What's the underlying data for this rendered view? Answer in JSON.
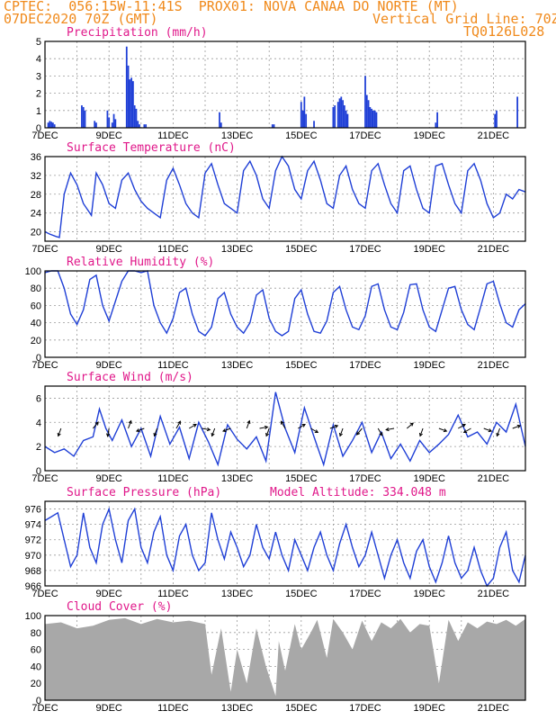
{
  "header": {
    "line1": "CPTEC:  056:15W-11:41S  PROX01: NOVA CANAA DO NORTE (MT)",
    "line2_left": "07DEC2020 70Z (GMT)",
    "line2_right": "Vertical Grid Line: 70Z",
    "line3_right": "TQ0126L028"
  },
  "colors": {
    "header": "#f08a1c",
    "panel_title": "#e0188a",
    "series": "#1f3fd6",
    "cloud": "#a8a8a8"
  },
  "x_ticks": [
    "7DEC",
    "9DEC",
    "11DEC",
    "13DEC",
    "15DEC",
    "17DEC",
    "19DEC",
    "21DEC"
  ],
  "chart_data": [
    {
      "id": "precip",
      "type": "bar",
      "title": "Precipitation (mm/h)",
      "xlim": [
        0,
        15
      ],
      "ylim": [
        0,
        5
      ],
      "yticks": [
        0,
        1,
        2,
        3,
        4,
        5
      ],
      "x": [
        0.1,
        0.15,
        0.2,
        0.25,
        0.3,
        1.15,
        1.2,
        1.25,
        1.55,
        1.6,
        1.95,
        2.0,
        2.1,
        2.15,
        2.2,
        2.55,
        2.6,
        2.65,
        2.7,
        2.75,
        2.8,
        2.85,
        2.9,
        2.95,
        3.1,
        3.15,
        5.45,
        5.5,
        7.1,
        7.15,
        8.0,
        8.05,
        8.1,
        8.15,
        8.4,
        9.0,
        9.05,
        9.15,
        9.2,
        9.25,
        9.3,
        9.35,
        9.4,
        9.45,
        10.0,
        10.05,
        10.1,
        10.15,
        10.2,
        10.25,
        10.3,
        10.35,
        12.2,
        12.25,
        14.05,
        14.1,
        14.75
      ],
      "values": [
        0.3,
        0.4,
        0.35,
        0.3,
        0.2,
        1.3,
        1.2,
        1.0,
        0.4,
        0.3,
        1.0,
        0.6,
        0.3,
        0.8,
        0.5,
        4.7,
        3.6,
        2.8,
        2.9,
        2.7,
        1.3,
        1.1,
        0.4,
        0.2,
        0.2,
        0.2,
        0.9,
        0.3,
        0.2,
        0.2,
        1.5,
        1.0,
        1.8,
        0.8,
        0.4,
        1.2,
        1.3,
        1.5,
        1.7,
        1.8,
        1.6,
        1.3,
        1.0,
        0.8,
        3.0,
        1.9,
        1.6,
        1.2,
        1.1,
        1.0,
        1.0,
        0.9,
        0.3,
        0.9,
        0.8,
        1.0,
        1.8
      ]
    },
    {
      "id": "temp",
      "type": "line",
      "title": "Surface Temperature (nC)",
      "xlim": [
        0,
        15
      ],
      "ylim": [
        18,
        36
      ],
      "yticks": [
        20,
        24,
        28,
        32,
        36
      ],
      "x": [
        0,
        0.15,
        0.35,
        0.45,
        0.6,
        0.8,
        1.0,
        1.2,
        1.45,
        1.6,
        1.8,
        2.0,
        2.2,
        2.4,
        2.6,
        2.8,
        3.0,
        3.2,
        3.4,
        3.6,
        3.8,
        4.0,
        4.2,
        4.4,
        4.6,
        4.8,
        5.0,
        5.2,
        5.4,
        5.6,
        5.8,
        6.0,
        6.2,
        6.4,
        6.6,
        6.8,
        7.0,
        7.2,
        7.4,
        7.6,
        7.8,
        8.0,
        8.2,
        8.4,
        8.6,
        8.8,
        9.0,
        9.2,
        9.4,
        9.6,
        9.8,
        10.0,
        10.2,
        10.4,
        10.6,
        10.8,
        11.0,
        11.2,
        11.4,
        11.6,
        11.8,
        12.0,
        12.2,
        12.4,
        12.6,
        12.8,
        13.0,
        13.2,
        13.4,
        13.6,
        13.8,
        14.0,
        14.2,
        14.4,
        14.6,
        14.8,
        15.0
      ],
      "values": [
        20,
        19.5,
        19,
        18.8,
        28,
        32.5,
        30,
        26,
        23.5,
        32.5,
        30,
        26,
        25,
        31,
        32.5,
        29,
        26.5,
        25,
        24,
        23,
        31,
        33.5,
        30,
        26,
        24,
        23,
        32.5,
        34.5,
        30,
        26,
        25,
        24,
        33,
        35,
        32,
        27,
        25,
        33,
        36,
        34,
        29,
        27,
        33,
        35,
        31,
        26,
        25,
        32,
        34,
        29,
        26,
        25,
        33,
        34.5,
        30,
        26,
        24,
        33,
        34,
        29,
        25,
        24,
        34,
        34.5,
        30,
        26,
        24,
        33,
        34.5,
        31,
        26,
        23,
        24,
        28,
        27,
        29,
        28.5
      ]
    },
    {
      "id": "rh",
      "type": "line",
      "title": "Relative Humidity (%)",
      "xlim": [
        0,
        15
      ],
      "ylim": [
        0,
        100
      ],
      "yticks": [
        0,
        20,
        40,
        60,
        80,
        100
      ],
      "x": [
        0,
        0.2,
        0.4,
        0.6,
        0.8,
        1.0,
        1.2,
        1.4,
        1.6,
        1.8,
        2.0,
        2.2,
        2.4,
        2.6,
        2.8,
        3.0,
        3.2,
        3.4,
        3.6,
        3.8,
        4.0,
        4.2,
        4.4,
        4.6,
        4.8,
        5.0,
        5.2,
        5.4,
        5.6,
        5.8,
        6.0,
        6.2,
        6.4,
        6.6,
        6.8,
        7.0,
        7.2,
        7.4,
        7.6,
        7.8,
        8.0,
        8.2,
        8.4,
        8.6,
        8.8,
        9.0,
        9.2,
        9.4,
        9.6,
        9.8,
        10.0,
        10.2,
        10.4,
        10.6,
        10.8,
        11.0,
        11.2,
        11.4,
        11.6,
        11.8,
        12.0,
        12.2,
        12.4,
        12.6,
        12.8,
        13.0,
        13.2,
        13.4,
        13.6,
        13.8,
        14.0,
        14.2,
        14.4,
        14.6,
        14.8,
        15.0
      ],
      "values": [
        98,
        100,
        100,
        80,
        50,
        38,
        55,
        90,
        95,
        60,
        42,
        65,
        88,
        100,
        100,
        98,
        100,
        60,
        40,
        28,
        45,
        75,
        80,
        50,
        30,
        25,
        35,
        68,
        75,
        50,
        35,
        28,
        40,
        72,
        78,
        45,
        30,
        25,
        30,
        68,
        78,
        50,
        30,
        28,
        42,
        75,
        82,
        55,
        35,
        32,
        48,
        82,
        85,
        55,
        35,
        32,
        52,
        84,
        85,
        55,
        35,
        30,
        55,
        80,
        82,
        55,
        38,
        32,
        58,
        85,
        88,
        62,
        40,
        35,
        55,
        62
      ]
    },
    {
      "id": "wind",
      "type": "line",
      "title": "Surface Wind (m/s)",
      "xlim": [
        0,
        15
      ],
      "ylim": [
        0,
        7
      ],
      "yticks": [
        0,
        2,
        4,
        6
      ],
      "x": [
        0,
        0.3,
        0.6,
        0.9,
        1.2,
        1.5,
        1.7,
        1.9,
        2.1,
        2.4,
        2.7,
        3.0,
        3.3,
        3.6,
        3.9,
        4.2,
        4.5,
        4.8,
        5.1,
        5.4,
        5.7,
        6.0,
        6.3,
        6.6,
        6.9,
        7.2,
        7.5,
        7.8,
        8.1,
        8.4,
        8.7,
        9.0,
        9.3,
        9.6,
        9.9,
        10.2,
        10.5,
        10.8,
        11.1,
        11.4,
        11.7,
        12.0,
        12.3,
        12.6,
        12.9,
        13.2,
        13.5,
        13.8,
        14.1,
        14.4,
        14.7,
        15.0
      ],
      "values": [
        2,
        1.5,
        1.8,
        1.2,
        2.5,
        2.8,
        5.1,
        3.5,
        2.5,
        4.2,
        2.0,
        3.5,
        1.2,
        4.5,
        2.2,
        3.6,
        1.0,
        4.0,
        2.4,
        0.5,
        3.8,
        2.6,
        1.8,
        2.8,
        0.8,
        6.5,
        3.5,
        1.5,
        5.2,
        2.8,
        0.5,
        3.8,
        1.2,
        2.5,
        4.0,
        1.5,
        3.2,
        1.0,
        2.2,
        0.8,
        2.5,
        1.5,
        2.2,
        3.0,
        4.6,
        2.8,
        3.2,
        2.2,
        4.0,
        3.2,
        5.5,
        2.0
      ],
      "vector_x": [
        0.5,
        1.5,
        2.0,
        2.6,
        3.1,
        3.5,
        4.1,
        4.5,
        4.9,
        5.3,
        5.8,
        6.3,
        6.7,
        7.0,
        7.5,
        7.9,
        8.3,
        8.9,
        9.3,
        9.9,
        10.4,
        10.9,
        11.3,
        11.8,
        12.3,
        12.9,
        13.3,
        13.7,
        14.2,
        14.6
      ],
      "vector_dir": [
        200,
        40,
        190,
        20,
        250,
        200,
        30,
        60,
        100,
        200,
        250,
        20,
        80,
        200,
        330,
        60,
        120,
        70,
        200,
        220,
        150,
        260,
        50,
        200,
        110,
        60,
        240,
        110,
        200,
        70
      ]
    },
    {
      "id": "pres",
      "type": "line",
      "title": "Surface Pressure (hPa)",
      "subtitle": "Model Altitude: 334.048 m",
      "xlim": [
        0,
        15
      ],
      "ylim": [
        966,
        977
      ],
      "yticks": [
        966,
        968,
        970,
        972,
        974,
        976
      ],
      "x": [
        0,
        0.2,
        0.4,
        0.6,
        0.8,
        1.0,
        1.2,
        1.4,
        1.6,
        1.8,
        2.0,
        2.2,
        2.4,
        2.6,
        2.8,
        3.0,
        3.2,
        3.4,
        3.6,
        3.8,
        4.0,
        4.2,
        4.4,
        4.6,
        4.8,
        5.0,
        5.2,
        5.4,
        5.6,
        5.8,
        6.0,
        6.2,
        6.4,
        6.6,
        6.8,
        7.0,
        7.2,
        7.4,
        7.6,
        7.8,
        8.0,
        8.2,
        8.4,
        8.6,
        8.8,
        9.0,
        9.2,
        9.4,
        9.6,
        9.8,
        10.0,
        10.2,
        10.4,
        10.6,
        10.8,
        11.0,
        11.2,
        11.4,
        11.6,
        11.8,
        12.0,
        12.2,
        12.4,
        12.6,
        12.8,
        13.0,
        13.2,
        13.4,
        13.6,
        13.8,
        14.0,
        14.2,
        14.4,
        14.6,
        14.8,
        15.0
      ],
      "values": [
        974.5,
        975,
        975.5,
        972,
        968.5,
        970,
        975.5,
        971,
        969,
        974,
        976,
        972,
        969,
        974.5,
        976,
        971,
        969,
        973,
        975,
        970,
        968,
        972.5,
        974,
        970,
        968,
        969,
        975.5,
        972,
        969.5,
        973,
        971,
        968.5,
        970,
        974,
        971,
        969.5,
        973,
        970,
        968,
        972,
        970,
        968,
        971,
        973,
        970,
        968,
        971.5,
        974,
        971,
        968.5,
        970,
        973,
        970,
        967,
        970,
        972,
        969,
        967,
        970.5,
        972,
        968.5,
        966.5,
        969,
        972.5,
        969,
        967,
        968,
        971,
        968,
        966,
        967,
        971,
        973,
        968,
        966.5,
        970
      ]
    },
    {
      "id": "cloud",
      "type": "area",
      "title": "Cloud Cover (%)",
      "xlim": [
        0,
        15
      ],
      "ylim": [
        0,
        100
      ],
      "yticks": [
        0,
        20,
        40,
        60,
        80,
        100
      ],
      "x": [
        0,
        0.5,
        1.0,
        1.5,
        2.0,
        2.5,
        3.0,
        3.5,
        4.0,
        4.5,
        5.0,
        5.2,
        5.5,
        5.8,
        6.0,
        6.3,
        6.6,
        6.9,
        7.2,
        7.3,
        7.5,
        7.8,
        8.0,
        8.3,
        8.5,
        8.8,
        9.0,
        9.3,
        9.6,
        9.9,
        10.2,
        10.5,
        10.8,
        11.1,
        11.4,
        11.7,
        12.0,
        12.3,
        12.6,
        12.9,
        13.2,
        13.5,
        13.8,
        14.1,
        14.4,
        14.7,
        15.0
      ],
      "values": [
        90,
        92,
        85,
        88,
        95,
        97,
        90,
        96,
        92,
        94,
        90,
        30,
        85,
        10,
        60,
        20,
        85,
        40,
        5,
        70,
        35,
        90,
        60,
        80,
        95,
        50,
        96,
        80,
        60,
        94,
        70,
        92,
        85,
        96,
        80,
        90,
        88,
        20,
        95,
        70,
        92,
        85,
        93,
        90,
        95,
        88,
        96
      ]
    }
  ]
}
